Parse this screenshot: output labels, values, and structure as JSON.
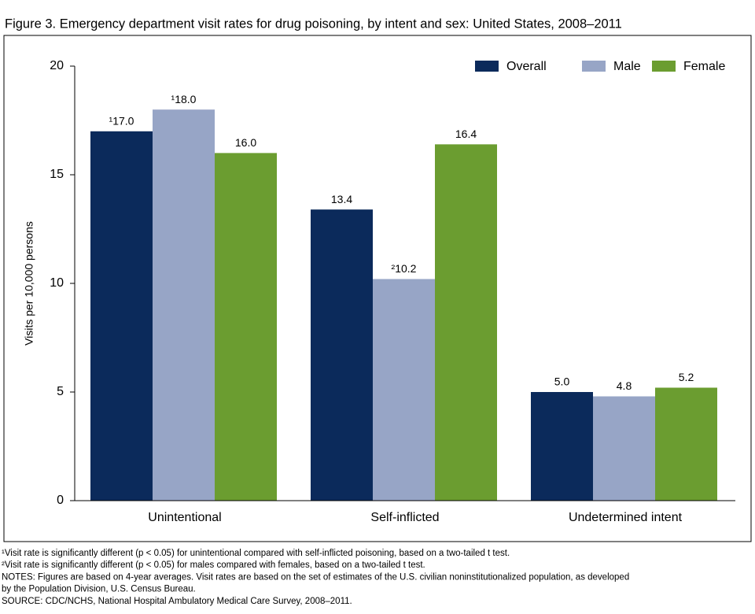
{
  "chart_data": {
    "type": "bar",
    "title": "Figure 3. Emergency department visit rates for drug poisoning, by intent and sex: United States, 2008–2011",
    "y_label": "Visits per 10,000 persons",
    "categories": [
      "Unintentional",
      "Self-inflicted",
      "Undetermined intent"
    ],
    "series": [
      {
        "name": "Overall",
        "color": "#0b2a5b",
        "values": [
          17.0,
          13.4,
          5.0
        ],
        "value_labels": [
          "¹17.0",
          "13.4",
          "5.0"
        ]
      },
      {
        "name": "Male",
        "color": "#97a5c6",
        "values": [
          18.0,
          10.2,
          4.8
        ],
        "value_labels": [
          "¹18.0",
          "²10.2",
          "4.8"
        ]
      },
      {
        "name": "Female",
        "color": "#6b9d30",
        "values": [
          16.0,
          16.4,
          5.2
        ],
        "value_labels": [
          "16.0",
          "16.4",
          "5.2"
        ]
      }
    ],
    "ylim": [
      0,
      20
    ],
    "yticks": [
      0,
      5,
      10,
      15,
      20
    ],
    "legend": "top-right",
    "footnotes": [
      "¹Visit rate is significantly different (p < 0.05) for unintentional compared with self-inflicted poisoning, based on a two-tailed t test.",
      "²Visit rate is significantly different (p < 0.05) for males compared with females, based on a two-tailed t test.",
      "NOTES: Figures are based on 4-year averages. Visit rates are based on the set of estimates of the U.S. civilian noninstitutionalized population, as developed",
      "by the Population Division, U.S. Census Bureau.",
      "SOURCE: CDC/NCHS, National Hospital Ambulatory Medical Care Survey, 2008–2011."
    ]
  }
}
